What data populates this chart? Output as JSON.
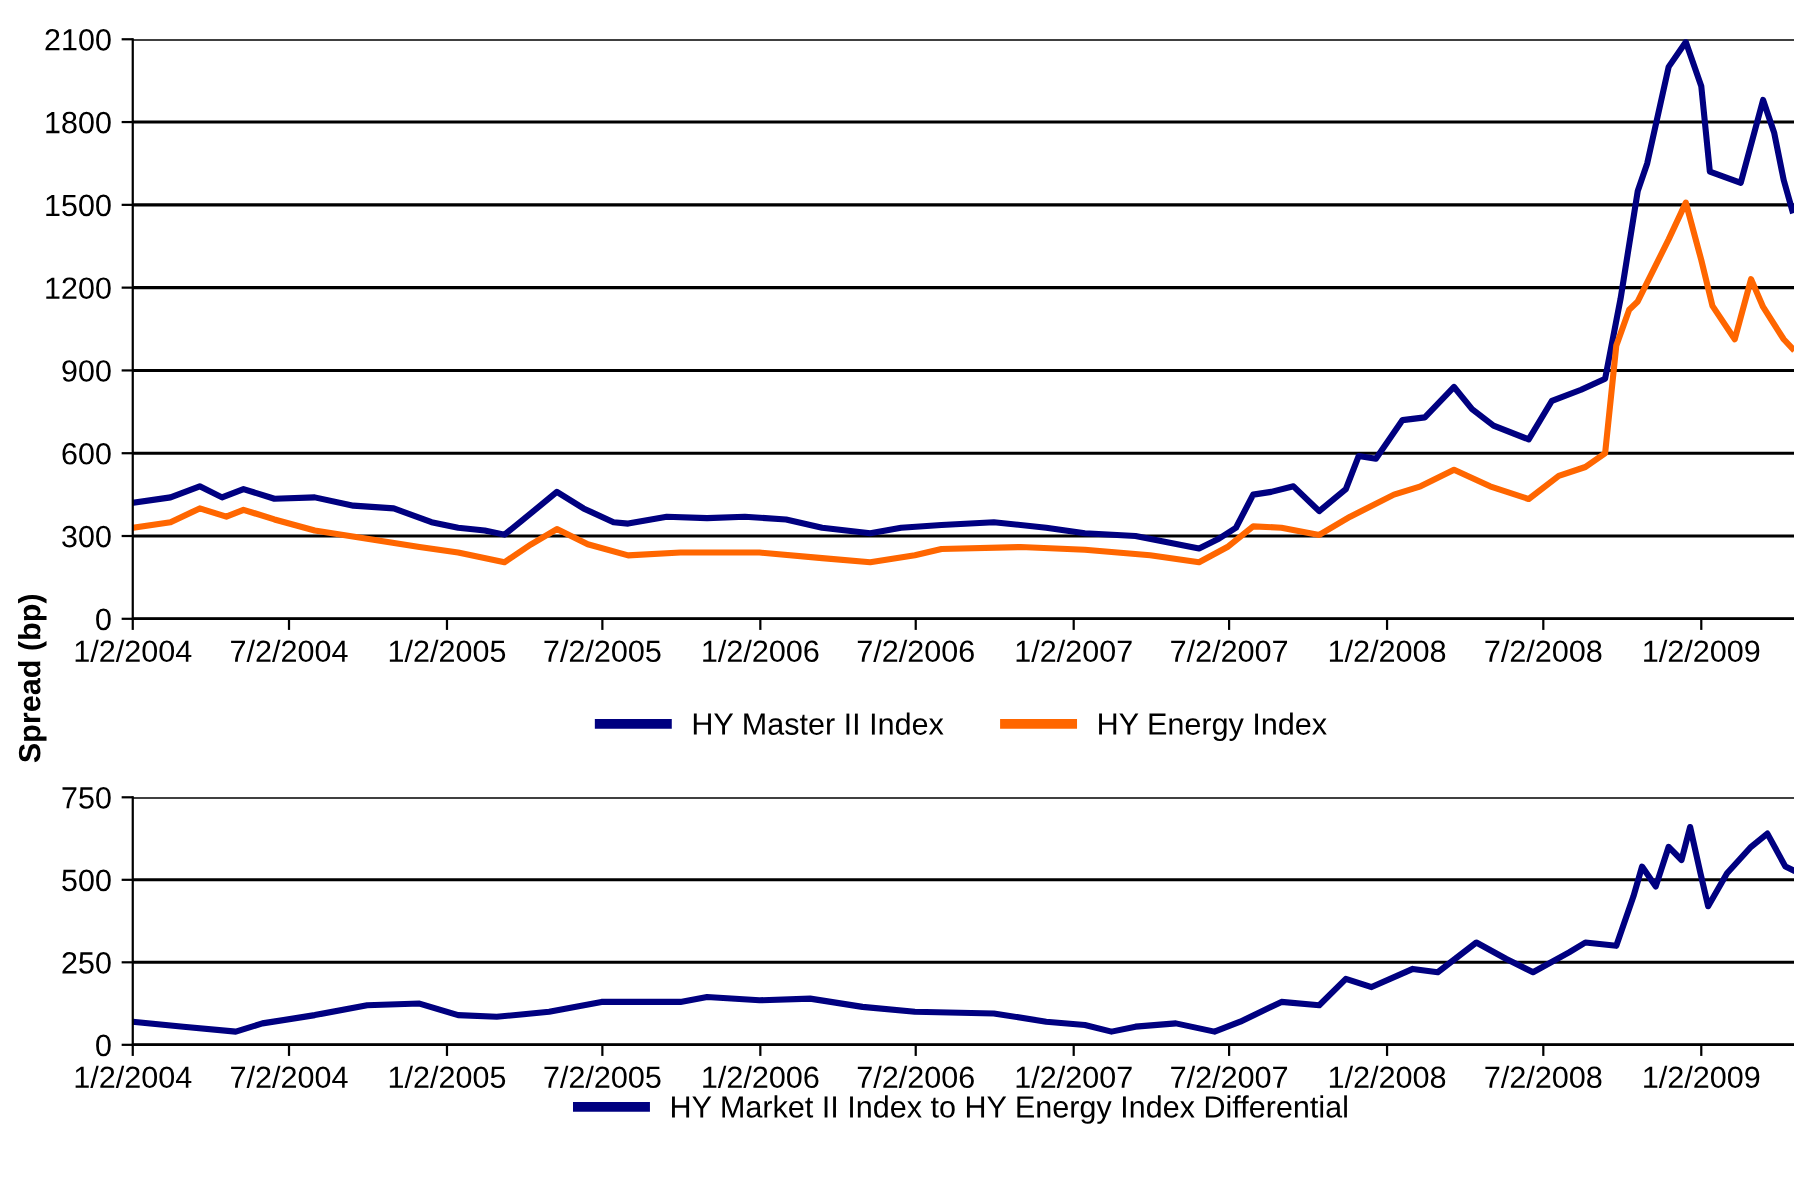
{
  "chart_data": [
    {
      "type": "line",
      "ylabel": "Spread (bp)",
      "ylim": [
        0,
        2100
      ],
      "yticks": [
        0,
        300,
        600,
        900,
        1200,
        1500,
        1800,
        2100
      ],
      "xlim": [
        "2004-01-02",
        "2009-04-20"
      ],
      "xticks": [
        {
          "value": "2004-01-02",
          "label": "1/2/2004"
        },
        {
          "value": "2004-07-02",
          "label": "7/2/2004"
        },
        {
          "value": "2005-01-02",
          "label": "1/2/2005"
        },
        {
          "value": "2005-07-02",
          "label": "7/2/2005"
        },
        {
          "value": "2006-01-02",
          "label": "1/2/2006"
        },
        {
          "value": "2006-07-02",
          "label": "7/2/2006"
        },
        {
          "value": "2007-01-02",
          "label": "1/2/2007"
        },
        {
          "value": "2007-07-02",
          "label": "7/2/2007"
        },
        {
          "value": "2008-01-02",
          "label": "1/2/2008"
        },
        {
          "value": "2008-07-02",
          "label": "7/2/2008"
        },
        {
          "value": "2009-01-02",
          "label": "1/2/2009"
        }
      ],
      "grid": "y",
      "legend": "bottom",
      "marker": "none",
      "line_style": "solid",
      "series": [
        {
          "name": "HY Master II Index",
          "color": "#000080",
          "x": [
            "2004-01-02",
            "2004-02-15",
            "2004-03-20",
            "2004-04-15",
            "2004-05-10",
            "2004-06-15",
            "2004-08-01",
            "2004-09-15",
            "2004-11-01",
            "2004-12-15",
            "2005-01-15",
            "2005-02-15",
            "2005-03-10",
            "2005-04-01",
            "2005-05-10",
            "2005-06-10",
            "2005-07-15",
            "2005-08-01",
            "2005-09-15",
            "2005-11-01",
            "2005-12-15",
            "2006-02-01",
            "2006-03-15",
            "2006-05-10",
            "2006-06-15",
            "2006-08-01",
            "2006-10-01",
            "2006-12-01",
            "2007-01-15",
            "2007-03-15",
            "2007-05-28",
            "2007-06-20",
            "2007-07-10",
            "2007-07-30",
            "2007-08-20",
            "2007-09-15",
            "2007-10-15",
            "2007-11-15",
            "2007-11-30",
            "2007-12-20",
            "2008-01-20",
            "2008-02-15",
            "2008-03-20",
            "2008-04-10",
            "2008-05-05",
            "2008-06-15",
            "2008-07-12",
            "2008-08-15",
            "2008-09-12",
            "2008-09-30",
            "2008-10-20",
            "2008-10-31",
            "2008-11-25",
            "2008-12-15",
            "2009-01-02",
            "2009-01-12",
            "2009-02-17",
            "2009-03-15",
            "2009-03-28",
            "2009-04-08",
            "2009-04-18"
          ],
          "values": [
            420,
            440,
            480,
            440,
            470,
            435,
            440,
            410,
            400,
            350,
            330,
            320,
            305,
            360,
            460,
            400,
            350,
            345,
            370,
            365,
            370,
            360,
            330,
            310,
            330,
            340,
            350,
            330,
            310,
            300,
            255,
            290,
            330,
            450,
            460,
            480,
            390,
            470,
            590,
            580,
            720,
            730,
            840,
            760,
            700,
            650,
            790,
            830,
            870,
            1160,
            1550,
            1650,
            2000,
            2090,
            1930,
            1620,
            1580,
            1880,
            1760,
            1590,
            1480
          ]
        },
        {
          "name": "HY Energy Index",
          "color": "#ff6600",
          "x": [
            "2004-01-02",
            "2004-02-15",
            "2004-03-20",
            "2004-04-20",
            "2004-05-10",
            "2004-06-15",
            "2004-08-01",
            "2004-10-01",
            "2004-12-01",
            "2005-01-15",
            "2005-03-10",
            "2005-04-10",
            "2005-05-10",
            "2005-06-15",
            "2005-08-01",
            "2005-10-01",
            "2006-01-01",
            "2006-03-15",
            "2006-05-10",
            "2006-07-01",
            "2006-08-01",
            "2006-11-01",
            "2007-01-15",
            "2007-04-01",
            "2007-05-28",
            "2007-06-30",
            "2007-07-30",
            "2007-09-01",
            "2007-10-15",
            "2007-11-20",
            "2008-01-10",
            "2008-02-10",
            "2008-03-20",
            "2008-05-01",
            "2008-06-15",
            "2008-07-20",
            "2008-08-20",
            "2008-09-12",
            "2008-09-25",
            "2008-10-10",
            "2008-10-20",
            "2008-11-25",
            "2008-12-15",
            "2009-01-02",
            "2009-01-15",
            "2009-02-10",
            "2009-03-01",
            "2009-03-15",
            "2009-04-08",
            "2009-04-18"
          ],
          "values": [
            330,
            350,
            400,
            370,
            395,
            360,
            320,
            290,
            260,
            240,
            205,
            270,
            325,
            270,
            230,
            240,
            240,
            220,
            205,
            230,
            253,
            260,
            250,
            230,
            205,
            260,
            335,
            330,
            304,
            370,
            450,
            480,
            540,
            480,
            434,
            518,
            550,
            600,
            990,
            1120,
            1150,
            1375,
            1508,
            1300,
            1134,
            1013,
            1231,
            1130,
            1013,
            980
          ]
        }
      ]
    },
    {
      "type": "line",
      "ylim": [
        0,
        750
      ],
      "yticks": [
        0,
        250,
        500,
        750
      ],
      "xlim": [
        "2004-01-02",
        "2009-04-20"
      ],
      "xticks": [
        {
          "value": "2004-01-02",
          "label": "1/2/2004"
        },
        {
          "value": "2004-07-02",
          "label": "7/2/2004"
        },
        {
          "value": "2005-01-02",
          "label": "1/2/2005"
        },
        {
          "value": "2005-07-02",
          "label": "7/2/2005"
        },
        {
          "value": "2006-01-02",
          "label": "1/2/2006"
        },
        {
          "value": "2006-07-02",
          "label": "7/2/2006"
        },
        {
          "value": "2007-01-02",
          "label": "1/2/2007"
        },
        {
          "value": "2007-07-02",
          "label": "7/2/2007"
        },
        {
          "value": "2008-01-02",
          "label": "1/2/2008"
        },
        {
          "value": "2008-07-02",
          "label": "7/2/2008"
        },
        {
          "value": "2009-01-02",
          "label": "1/2/2009"
        }
      ],
      "grid": "y",
      "legend": "bottom",
      "marker": "none",
      "line_style": "solid",
      "series": [
        {
          "name": "HY Market II Index to HY Energy Index Differential",
          "color": "#000080",
          "x": [
            "2004-01-02",
            "2004-03-01",
            "2004-05-01",
            "2004-06-01",
            "2004-08-01",
            "2004-10-01",
            "2004-12-01",
            "2005-01-15",
            "2005-03-01",
            "2005-05-01",
            "2005-07-01",
            "2005-10-01",
            "2005-11-01",
            "2006-01-01",
            "2006-03-01",
            "2006-05-01",
            "2006-07-01",
            "2006-10-01",
            "2006-12-01",
            "2007-01-15",
            "2007-02-15",
            "2007-03-15",
            "2007-05-01",
            "2007-06-15",
            "2007-07-15",
            "2007-09-01",
            "2007-10-15",
            "2007-11-15",
            "2007-12-15",
            "2008-02-01",
            "2008-03-01",
            "2008-04-15",
            "2008-05-20",
            "2008-06-20",
            "2008-08-01",
            "2008-08-20",
            "2008-09-25",
            "2008-10-15",
            "2008-10-25",
            "2008-11-10",
            "2008-11-25",
            "2008-12-10",
            "2008-12-20",
            "2009-01-01",
            "2009-01-10",
            "2009-02-01",
            "2009-03-01",
            "2009-03-20",
            "2009-04-10",
            "2009-04-18"
          ],
          "values": [
            70,
            55,
            40,
            65,
            90,
            120,
            125,
            90,
            85,
            100,
            130,
            130,
            145,
            135,
            140,
            115,
            100,
            95,
            70,
            60,
            40,
            55,
            65,
            40,
            70,
            130,
            120,
            200,
            175,
            230,
            220,
            310,
            260,
            220,
            280,
            310,
            300,
            450,
            540,
            480,
            600,
            560,
            660,
            520,
            420,
            520,
            600,
            640,
            540,
            530
          ]
        }
      ]
    }
  ]
}
